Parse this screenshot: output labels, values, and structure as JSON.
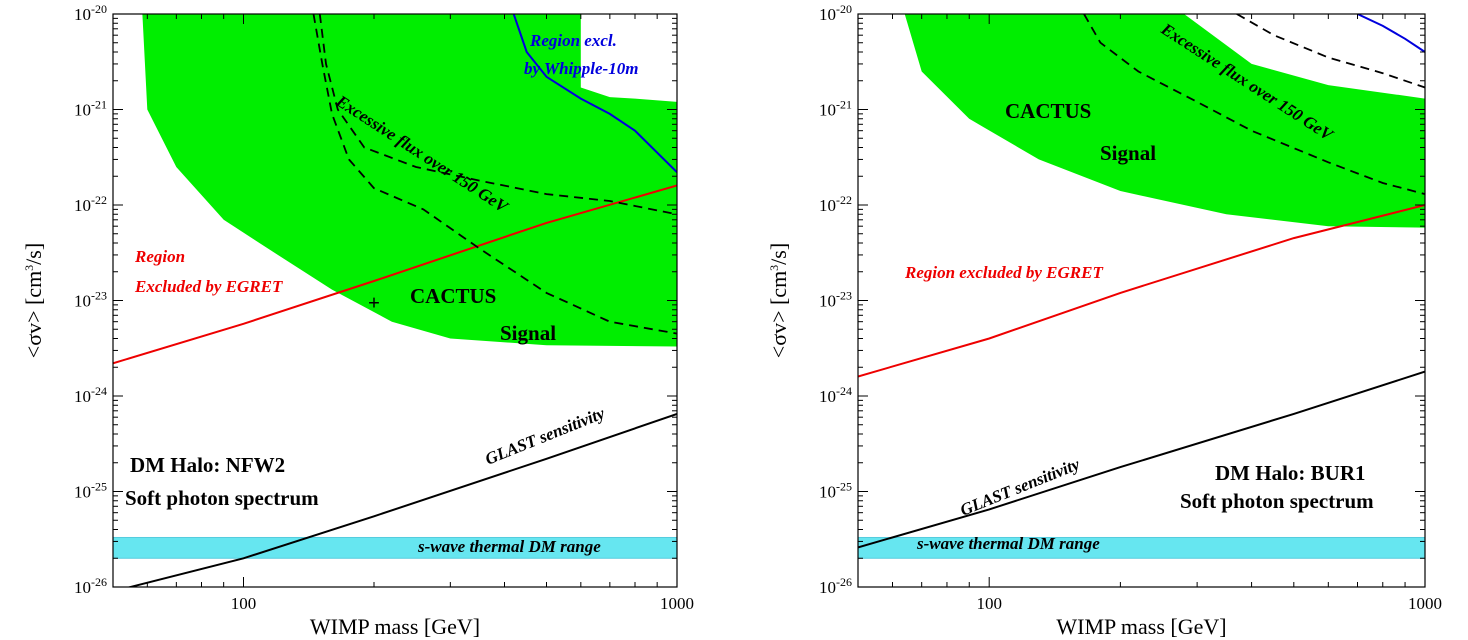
{
  "chart_data": [
    {
      "type": "line",
      "xlabel": "WIMP mass  [GeV]",
      "ylabel": "<σv>  [cm3/s]",
      "xscale": "log",
      "yscale": "log",
      "xlim": [
        50,
        1000
      ],
      "ylim": [
        1e-26,
        1e-20
      ],
      "x_ticks": [
        {
          "value": 100,
          "label": "100"
        },
        {
          "value": 1000,
          "label": "1000"
        }
      ],
      "y_ticks": [
        {
          "value": 1e-26,
          "label": "10",
          "exp": "-26"
        },
        {
          "value": 1e-25,
          "label": "10",
          "exp": "-25"
        },
        {
          "value": 1e-24,
          "label": "10",
          "exp": "-24"
        },
        {
          "value": 1e-23,
          "label": "10",
          "exp": "-23"
        },
        {
          "value": 1e-22,
          "label": "10",
          "exp": "-22"
        },
        {
          "value": 1e-21,
          "label": "10",
          "exp": "-21"
        },
        {
          "value": 1e-20,
          "label": "10",
          "exp": "-20"
        }
      ],
      "halo_label": "DM Halo: NFW2",
      "spectrum_label": "Soft photon spectrum",
      "signal_label_1": "CACTUS",
      "signal_label_2": "Signal",
      "best_fit_marker": {
        "symbol": "+",
        "x": 200,
        "y": 1e-23
      },
      "series": [
        {
          "name": "CACTUS Signal",
          "kind": "band",
          "color": "#00ee00",
          "upper": [
            [
              50,
              1e-20
            ],
            [
              600,
              1e-20
            ],
            [
              600,
              1.7e-21
            ],
            [
              700,
              1.35e-21
            ],
            [
              800,
              1.3e-21
            ],
            [
              1000,
              1.2e-21
            ]
          ],
          "lower": [
            [
              58,
              2e-20
            ],
            [
              60,
              1e-21
            ],
            [
              70,
              2.5e-22
            ],
            [
              90,
              7e-23
            ],
            [
              120,
              3e-23
            ],
            [
              160,
              1.3e-23
            ],
            [
              220,
              6e-24
            ],
            [
              300,
              4e-24
            ],
            [
              500,
              3.4e-24
            ],
            [
              1000,
              3.3e-24
            ]
          ]
        },
        {
          "name": "s-wave thermal DM range",
          "kind": "band",
          "color": "#66e6f0",
          "y_low": 2e-26,
          "y_high": 3.3e-26
        },
        {
          "name": "Region Excluded by EGRET",
          "kind": "line",
          "color": "#ee0000",
          "points": [
            [
              50,
              2.2e-24
            ],
            [
              100,
              5.7e-24
            ],
            [
              200,
              1.6e-23
            ],
            [
              500,
              6.5e-23
            ],
            [
              1000,
              1.6e-22
            ]
          ]
        },
        {
          "name": "GLAST sensitivity",
          "kind": "line",
          "color": "#000000",
          "points": [
            [
              50,
              9e-27
            ],
            [
              100,
              2e-26
            ],
            [
              200,
              5.5e-26
            ],
            [
              500,
              2.2e-25
            ],
            [
              1000,
              6.5e-25
            ]
          ]
        },
        {
          "name": "Excessive flux over 150 GeV",
          "kind": "dashed",
          "color": "#000000",
          "points": [
            [
              145,
              1e-20
            ],
            [
              152,
              3e-21
            ],
            [
              160,
              9e-22
            ],
            [
              175,
              3e-22
            ],
            [
              200,
              1.5e-22
            ],
            [
              260,
              9e-23
            ],
            [
              350,
              3.5e-23
            ],
            [
              500,
              1.2e-23
            ],
            [
              700,
              6e-24
            ],
            [
              1000,
              4.5e-24
            ]
          ]
        },
        {
          "name": "Excessive flux over 150 GeV (upper)",
          "kind": "dashed",
          "color": "#000000",
          "points": [
            [
              150,
              1e-20
            ],
            [
              155,
              3e-21
            ],
            [
              165,
              1e-21
            ],
            [
              190,
              4e-22
            ],
            [
              250,
              2.5e-22
            ],
            [
              350,
              1.8e-22
            ],
            [
              500,
              1.3e-22
            ],
            [
              700,
              1.1e-22
            ],
            [
              1000,
              8e-23
            ]
          ]
        },
        {
          "name": "Region excl. by Whipple-10m",
          "kind": "line",
          "color": "#0000dd",
          "points": [
            [
              420,
              1e-20
            ],
            [
              450,
              4e-21
            ],
            [
              500,
              2.2e-21
            ],
            [
              600,
              1.3e-21
            ],
            [
              700,
              9e-22
            ],
            [
              800,
              6e-22
            ],
            [
              1000,
              2.2e-22
            ]
          ]
        }
      ],
      "annotations": {
        "egret_line1": "Region",
        "egret_line2": "Excluded by EGRET",
        "whipple_line1": "Region excl.",
        "whipple_line2": "by Whipple-10m",
        "flux": "Excessive flux over 150 GeV",
        "glast": "GLAST sensitivity",
        "thermal": "s-wave thermal DM range"
      }
    },
    {
      "type": "line",
      "xlabel": "WIMP mass  [GeV]",
      "ylabel": "<σv>  [cm3/s]",
      "xscale": "log",
      "yscale": "log",
      "xlim": [
        50,
        1000
      ],
      "ylim": [
        1e-26,
        1e-20
      ],
      "x_ticks": [
        {
          "value": 100,
          "label": "100"
        },
        {
          "value": 1000,
          "label": "1000"
        }
      ],
      "y_ticks": [
        {
          "value": 1e-26,
          "label": "10",
          "exp": "-26"
        },
        {
          "value": 1e-25,
          "label": "10",
          "exp": "-25"
        },
        {
          "value": 1e-24,
          "label": "10",
          "exp": "-24"
        },
        {
          "value": 1e-23,
          "label": "10",
          "exp": "-23"
        },
        {
          "value": 1e-22,
          "label": "10",
          "exp": "-22"
        },
        {
          "value": 1e-21,
          "label": "10",
          "exp": "-21"
        },
        {
          "value": 1e-20,
          "label": "10",
          "exp": "-20"
        }
      ],
      "halo_label": "DM Halo: BUR1",
      "spectrum_label": "Soft photon spectrum",
      "signal_label_1": "CACTUS",
      "signal_label_2": "Signal",
      "series": [
        {
          "name": "CACTUS Signal",
          "kind": "band",
          "color": "#00ee00",
          "upper": [
            [
              55,
              1e-20
            ],
            [
              200,
              1e-20
            ],
            [
              280,
              1e-20
            ],
            [
              400,
              3e-21
            ],
            [
              600,
              1.8e-21
            ],
            [
              800,
              1.5e-21
            ],
            [
              1000,
              1.3e-21
            ]
          ],
          "lower": [
            [
              64,
              1e-20
            ],
            [
              70,
              2.5e-21
            ],
            [
              90,
              8e-22
            ],
            [
              130,
              3e-22
            ],
            [
              200,
              1.4e-22
            ],
            [
              350,
              8e-23
            ],
            [
              600,
              6e-23
            ],
            [
              1000,
              5.8e-23
            ]
          ]
        },
        {
          "name": "s-wave thermal DM range",
          "kind": "band",
          "color": "#66e6f0",
          "y_low": 2e-26,
          "y_high": 3.3e-26
        },
        {
          "name": "Region excluded by EGRET",
          "kind": "line",
          "color": "#ee0000",
          "points": [
            [
              50,
              1.6e-24
            ],
            [
              100,
              4e-24
            ],
            [
              200,
              1.2e-23
            ],
            [
              500,
              4.5e-23
            ],
            [
              1000,
              1e-22
            ]
          ]
        },
        {
          "name": "GLAST sensitivity",
          "kind": "line",
          "color": "#000000",
          "points": [
            [
              50,
              2.6e-26
            ],
            [
              100,
              6.5e-26
            ],
            [
              200,
              1.8e-25
            ],
            [
              500,
              6.5e-25
            ],
            [
              1000,
              1.8e-24
            ]
          ]
        },
        {
          "name": "Excessive flux over 150 GeV",
          "kind": "dashed",
          "color": "#000000",
          "points": [
            [
              165,
              1e-20
            ],
            [
              180,
              5e-21
            ],
            [
              220,
              2.5e-21
            ],
            [
              300,
              1.2e-21
            ],
            [
              400,
              6e-22
            ],
            [
              600,
              2.8e-22
            ],
            [
              800,
              1.7e-22
            ],
            [
              1000,
              1.3e-22
            ]
          ]
        },
        {
          "name": "Excessive flux over 150 GeV (upper)",
          "kind": "dashed",
          "color": "#000000",
          "points": [
            [
              370,
              1e-20
            ],
            [
              450,
              6e-21
            ],
            [
              600,
              3.5e-21
            ],
            [
              800,
              2.4e-21
            ],
            [
              1000,
              1.7e-21
            ]
          ]
        },
        {
          "name": "Region excl. by Whipple-10m",
          "kind": "line",
          "color": "#0000dd",
          "points": [
            [
              700,
              1e-20
            ],
            [
              800,
              7.5e-21
            ],
            [
              900,
              5.5e-21
            ],
            [
              1000,
              4e-21
            ]
          ]
        }
      ],
      "annotations": {
        "egret_line1": "Region excluded by EGRET",
        "egret_line2": "",
        "whipple_line1": "",
        "whipple_line2": "",
        "flux": "Excessive flux over 150 GeV",
        "glast": "GLAST sensitivity",
        "thermal": "s-wave thermal DM range"
      }
    }
  ]
}
